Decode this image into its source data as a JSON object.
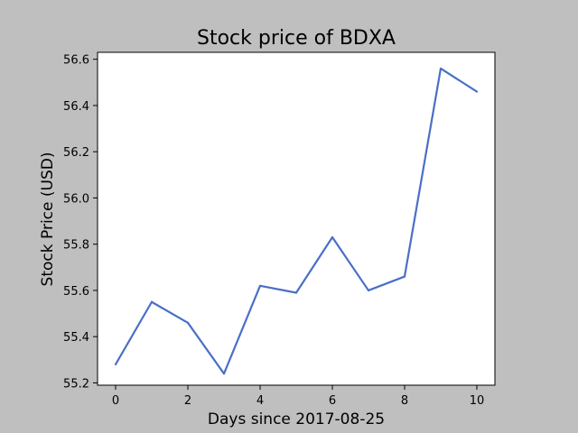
{
  "chart_data": {
    "type": "line",
    "title": "Stock price of BDXA",
    "xlabel": "Days since 2017-08-25",
    "ylabel": "Stock Price (USD)",
    "x": [
      0,
      1,
      2,
      3,
      4,
      5,
      6,
      7,
      8,
      9,
      10
    ],
    "series": [
      {
        "values": [
          55.28,
          55.55,
          55.46,
          55.24,
          55.62,
          55.59,
          55.83,
          55.6,
          55.66,
          56.56,
          56.46
        ]
      }
    ],
    "xlim": [
      -0.5,
      10.5
    ],
    "ylim": [
      55.19,
      56.63
    ],
    "xticks": [
      0,
      2,
      4,
      6,
      8,
      10
    ],
    "yticks": [
      55.2,
      55.4,
      55.6,
      55.8,
      56.0,
      56.2,
      56.4,
      56.6
    ],
    "xtick_labels": [
      "0",
      "2",
      "4",
      "6",
      "8",
      "10"
    ],
    "ytick_labels": [
      "55.2",
      "55.4",
      "55.6",
      "55.8",
      "56.0",
      "56.2",
      "56.4",
      "56.6"
    ],
    "grid": false,
    "line_color": "#4a6fc7",
    "background_color": "#bfbfbf",
    "plot_background_color": "#ffffff"
  }
}
